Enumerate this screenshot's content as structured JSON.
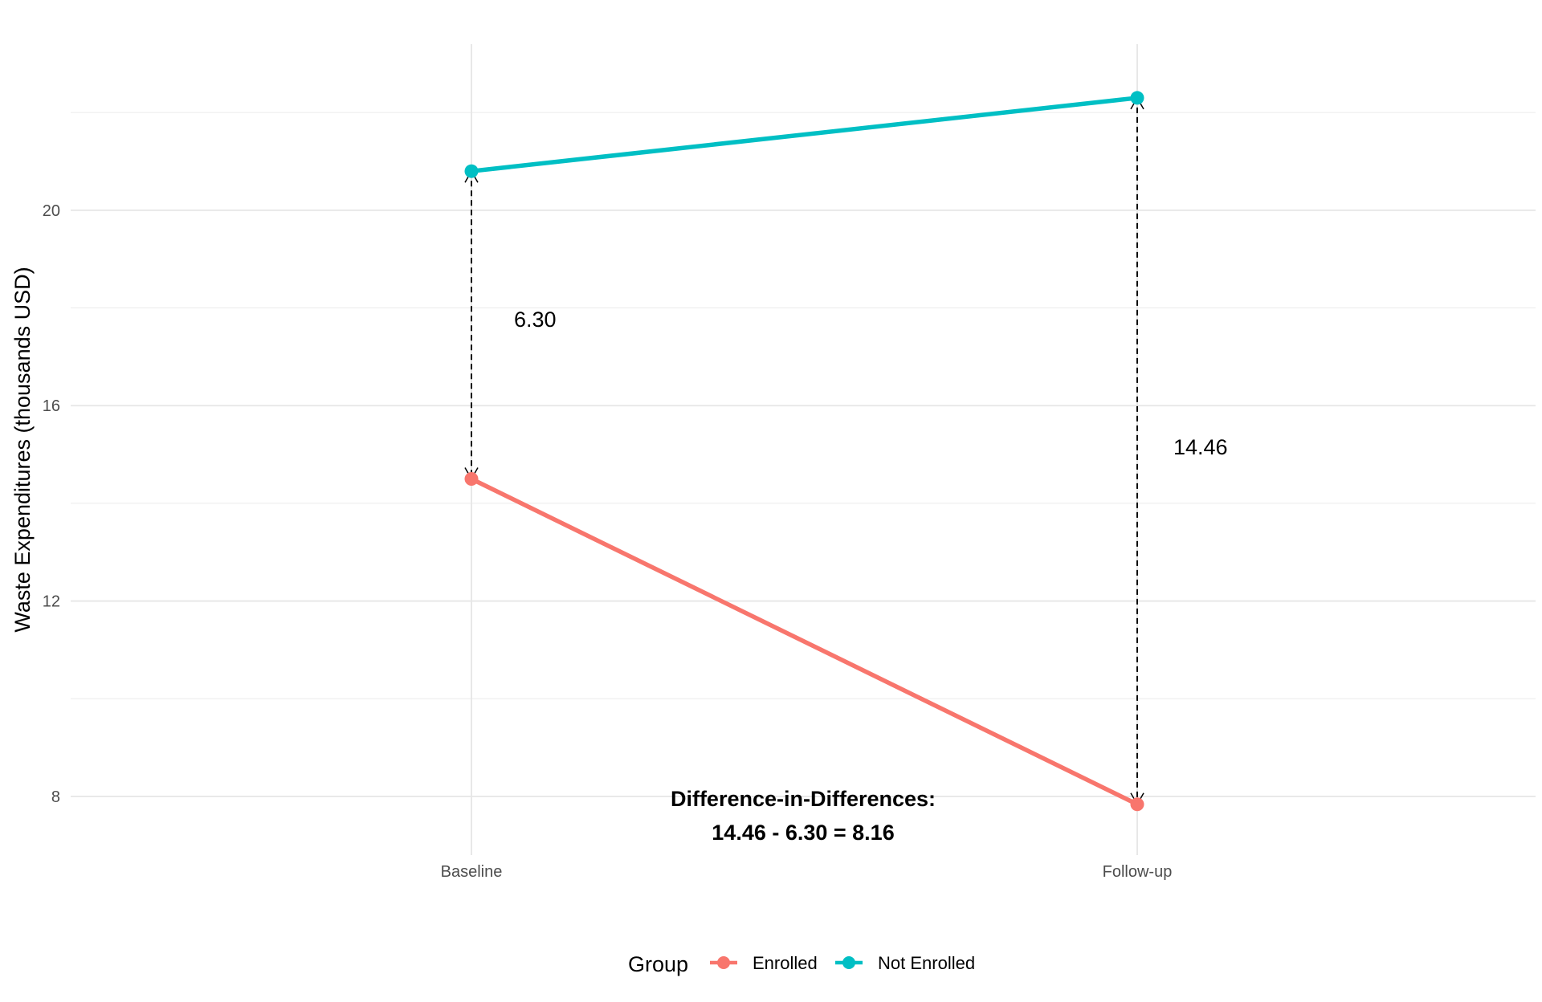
{
  "chart_data": {
    "type": "line",
    "title": "",
    "xlabel": "",
    "ylabel": "Waste Expenditures (thousands USD)",
    "categories": [
      "Baseline",
      "Follow-up"
    ],
    "y_ticks": [
      8,
      12,
      16,
      20
    ],
    "ylim": [
      6.8,
      23.4
    ],
    "grid": true,
    "legend": {
      "title": "Group",
      "placement": "bottom"
    },
    "series": [
      {
        "name": "Enrolled",
        "values": [
          14.5,
          7.84
        ],
        "color": "#F8766D"
      },
      {
        "name": "Not Enrolled",
        "values": [
          20.8,
          22.3
        ],
        "color": "#00BFC4"
      }
    ],
    "annotations": {
      "baseline_gap": "6.30",
      "followup_gap": "14.46",
      "did_title": "Difference-in-Differences:",
      "did_formula": "14.46 - 6.30 = 8.16"
    }
  }
}
